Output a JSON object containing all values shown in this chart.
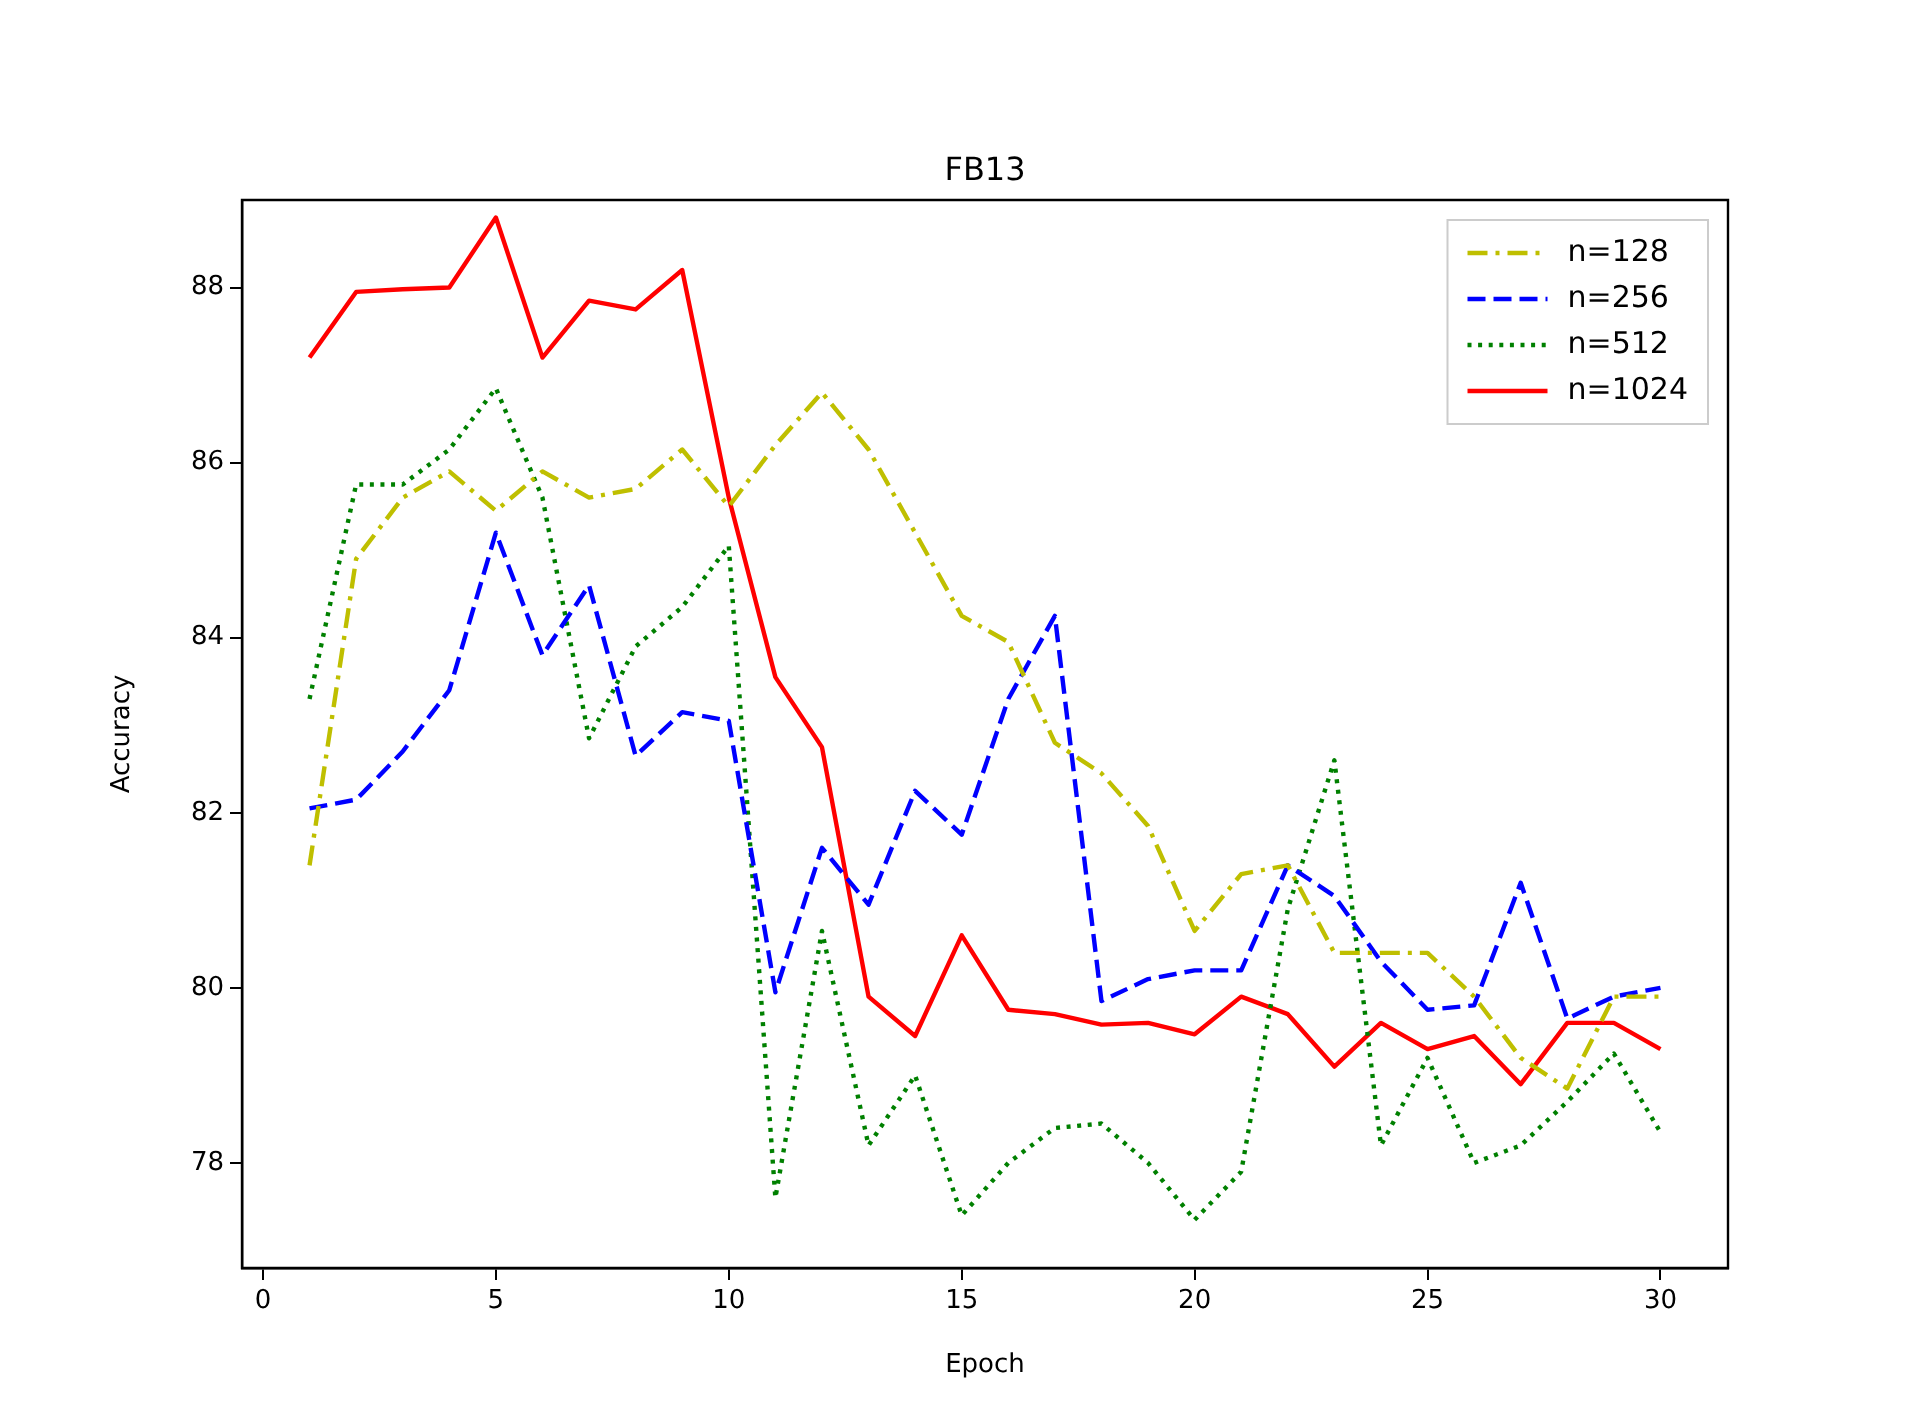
{
  "chart_data": {
    "type": "line",
    "title": "FB13",
    "xlabel": "Epoch",
    "ylabel": "Accuracy",
    "x": [
      1,
      2,
      3,
      4,
      5,
      6,
      7,
      8,
      9,
      10,
      11,
      12,
      13,
      14,
      15,
      16,
      17,
      18,
      19,
      20,
      21,
      22,
      23,
      24,
      25,
      26,
      27,
      28,
      29,
      30
    ],
    "xlim": [
      -0.45,
      31.45
    ],
    "xticks": [
      0,
      5,
      10,
      15,
      20,
      25,
      30
    ],
    "ylim": [
      76.8,
      89.0
    ],
    "yticks": [
      78,
      80,
      82,
      84,
      86,
      88
    ],
    "grid": false,
    "legend": "top right",
    "marker": "none",
    "series": [
      {
        "name": "n=128",
        "color": "#bfbf00",
        "line_style": "dashdot",
        "values": [
          81.4,
          84.9,
          85.6,
          85.9,
          85.45,
          85.9,
          85.6,
          85.7,
          86.15,
          85.5,
          86.2,
          86.8,
          86.15,
          85.2,
          84.25,
          83.95,
          82.8,
          82.45,
          81.85,
          80.65,
          81.3,
          81.4,
          80.4,
          80.4,
          80.4,
          79.9,
          79.2,
          78.85,
          79.9,
          79.9
        ]
      },
      {
        "name": "n=256",
        "color": "#0000ff",
        "line_style": "dashed",
        "values": [
          82.05,
          82.15,
          82.7,
          83.4,
          85.2,
          83.8,
          84.6,
          82.65,
          83.15,
          83.05,
          79.95,
          81.6,
          80.95,
          82.25,
          81.75,
          83.3,
          84.25,
          79.85,
          80.1,
          80.2,
          80.2,
          81.4,
          81.05,
          80.3,
          79.75,
          79.8,
          81.2,
          79.65,
          79.9,
          80.0
        ]
      },
      {
        "name": "n=512",
        "color": "#008000",
        "line_style": "dotted",
        "values": [
          83.3,
          85.75,
          85.75,
          86.15,
          86.85,
          85.6,
          82.85,
          83.9,
          84.35,
          85.05,
          77.6,
          80.65,
          78.2,
          79.0,
          77.4,
          78.0,
          78.4,
          78.45,
          78.0,
          77.35,
          77.9,
          80.9,
          82.6,
          78.2,
          79.2,
          78.0,
          78.2,
          78.7,
          79.25,
          78.35
        ]
      },
      {
        "name": "n=1024",
        "color": "#ff0000",
        "line_style": "solid",
        "values": [
          87.2,
          87.95,
          87.98,
          88.0,
          88.8,
          87.2,
          87.85,
          87.75,
          88.2,
          85.6,
          83.55,
          82.75,
          79.9,
          79.45,
          80.6,
          79.75,
          79.7,
          79.58,
          79.6,
          79.47,
          79.9,
          79.7,
          79.1,
          79.6,
          79.3,
          79.45,
          78.9,
          79.6,
          79.6,
          79.3
        ]
      }
    ]
  }
}
